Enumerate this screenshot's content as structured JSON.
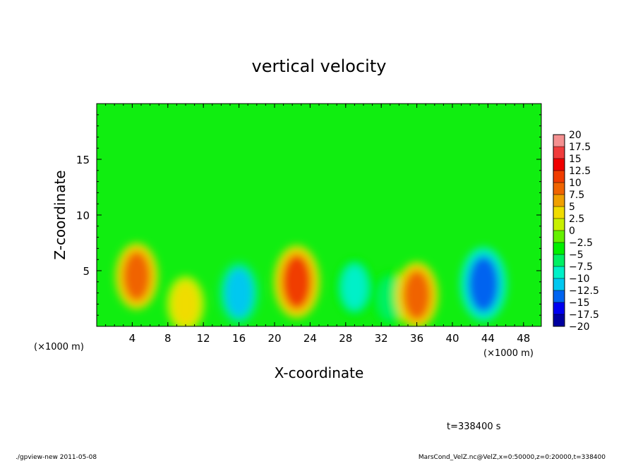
{
  "chart_data": {
    "type": "heatmap",
    "title": "vertical velocity",
    "xlabel": "X-coordinate",
    "ylabel": "Z-coordinate",
    "x_unit_left": "(×1000 m)",
    "x_unit_right": "(×1000 m)",
    "xlim": [
      0,
      50
    ],
    "ylim": [
      0,
      20
    ],
    "xticks": [
      "4",
      "8",
      "12",
      "16",
      "20",
      "24",
      "28",
      "32",
      "36",
      "40",
      "44",
      "48"
    ],
    "yticks": [
      "5",
      "10",
      "15"
    ],
    "time_label": "t=338400 s",
    "colorbar": {
      "labels": [
        "20",
        "17.5",
        "15",
        "12.5",
        "10",
        "7.5",
        "5",
        "2.5",
        "0",
        "−2.5",
        "−5",
        "−7.5",
        "−10",
        "−12.5",
        "−15",
        "−17.5",
        "−20"
      ],
      "colors": [
        "#f49090",
        "#f03c3c",
        "#f00000",
        "#f03c00",
        "#f06400",
        "#f0a000",
        "#f0dc00",
        "#c8f000",
        "#64f000",
        "#00f000",
        "#00f064",
        "#00f0c8",
        "#00c8f0",
        "#0064f0",
        "#0000f0",
        "#0000a0",
        "#5a00a0"
      ]
    },
    "features": [
      {
        "x": 4.5,
        "z": 4.5,
        "w": 10,
        "label": "updraft"
      },
      {
        "x": 10,
        "z": 2.0,
        "w": 6,
        "label": "updraft"
      },
      {
        "x": 16,
        "z": 3.0,
        "w": -9,
        "label": "downdraft"
      },
      {
        "x": 22.5,
        "z": 4.0,
        "w": 12.5,
        "label": "updraft"
      },
      {
        "x": 29,
        "z": 3.5,
        "w": -7,
        "label": "downdraft"
      },
      {
        "x": 33,
        "z": 2.5,
        "w": -6,
        "label": "downdraft"
      },
      {
        "x": 36,
        "z": 2.8,
        "w": 10,
        "label": "updraft"
      },
      {
        "x": 43.5,
        "z": 3.8,
        "w": -13,
        "label": "downdraft"
      }
    ]
  },
  "footer": {
    "left": "./gpview-new  2011-05-08",
    "right": "MarsCond_VelZ.nc@VelZ,x=0:50000,z=0:20000,t=338400"
  }
}
